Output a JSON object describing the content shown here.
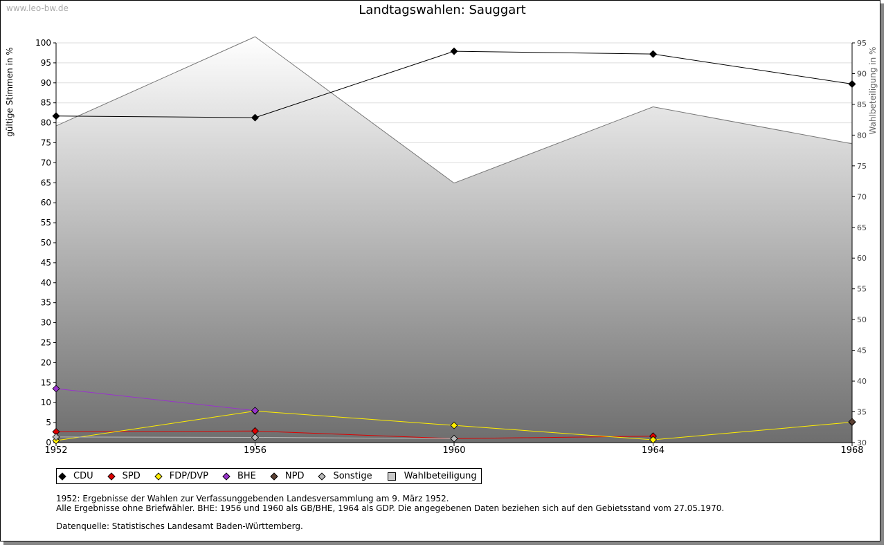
{
  "watermark": "www.leo-bw.de",
  "chart_data": {
    "type": "line",
    "title": "Landtagswahlen: Sauggart",
    "ylabel": "gültige Stimmen in %",
    "y2label": "Wahlbeteiligung in %",
    "x": [
      1952,
      1956,
      1960,
      1964,
      1968
    ],
    "xticks": [
      "1952",
      "1956",
      "1960",
      "1964",
      "1968"
    ],
    "ylim": [
      0,
      100
    ],
    "yticks": [
      0,
      5,
      10,
      15,
      20,
      25,
      30,
      35,
      40,
      45,
      50,
      55,
      60,
      65,
      70,
      75,
      80,
      85,
      90,
      95,
      100
    ],
    "y2lim": [
      30,
      95
    ],
    "y2ticks": [
      30,
      35,
      40,
      45,
      50,
      55,
      60,
      65,
      70,
      75,
      80,
      85,
      90,
      95
    ],
    "grid": true,
    "legend_position": "bottom",
    "series": [
      {
        "name": "CDU",
        "color": "#000000",
        "values": [
          81.7,
          81.3,
          97.9,
          97.2,
          89.7
        ]
      },
      {
        "name": "SPD",
        "color": "#dd0000",
        "values": [
          2.7,
          2.9,
          1.0,
          1.6,
          null
        ]
      },
      {
        "name": "FDP/DVP",
        "color": "#ffee00",
        "values": [
          0.5,
          7.9,
          4.3,
          0.7,
          5.1
        ]
      },
      {
        "name": "BHE",
        "color": "#9933cc",
        "values": [
          13.5,
          8.0,
          null,
          null,
          null
        ]
      },
      {
        "name": "NPD",
        "color": "#5c4033",
        "values": [
          null,
          null,
          null,
          null,
          5.2
        ]
      },
      {
        "name": "Sonstige",
        "color": "#bbbbbb",
        "values": [
          1.4,
          1.3,
          1.0,
          null,
          null
        ]
      }
    ],
    "turnout": {
      "name": "Wahlbeteiligung",
      "axis": "right",
      "values": [
        81.5,
        96.0,
        72.2,
        84.6,
        78.6
      ]
    }
  },
  "notes": [
    "1952: Ergebnisse der Wahlen zur Verfassunggebenden Landesversammlung am 9. März 1952.",
    "Alle Ergebnisse ohne Briefwähler. BHE: 1956 und 1960 als GB/BHE, 1964 als GDP. Die angegebenen Daten beziehen sich auf den Gebietsstand vom 27.05.1970."
  ],
  "source": "Datenquelle: Statistisches Landesamt Baden-Württemberg."
}
